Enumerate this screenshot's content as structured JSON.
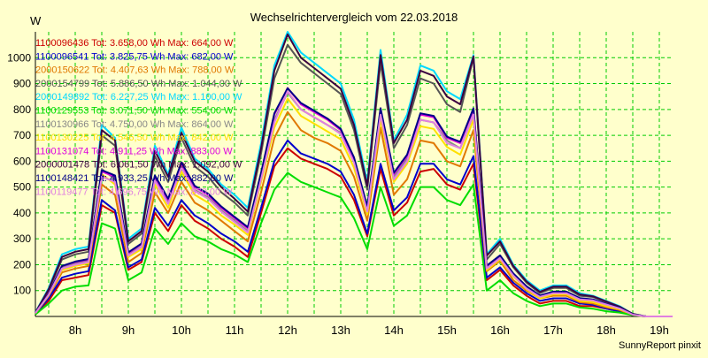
{
  "chart_data": {
    "type": "line",
    "title": "Wechselrichtervergleich vom 22.03.2018",
    "ylabel": "W",
    "xlabel": "",
    "footer": "SunnyReport pinxit",
    "ylim": [
      0,
      1100
    ],
    "yticks": [
      100,
      200,
      300,
      400,
      500,
      600,
      700,
      800,
      900,
      1000
    ],
    "xlim": [
      7.25,
      19.25
    ],
    "xticks": [
      {
        "value": 8,
        "label": "8h"
      },
      {
        "value": 9,
        "label": "9h"
      },
      {
        "value": 10,
        "label": "10h"
      },
      {
        "value": 11,
        "label": "11h"
      },
      {
        "value": 12,
        "label": "12h"
      },
      {
        "value": 13,
        "label": "13h"
      },
      {
        "value": 14,
        "label": "14h"
      },
      {
        "value": 15,
        "label": "15h"
      },
      {
        "value": 16,
        "label": "16h"
      },
      {
        "value": 17,
        "label": "17h"
      },
      {
        "value": 18,
        "label": "18h"
      },
      {
        "value": 19,
        "label": "19h"
      }
    ],
    "grid": true,
    "legend_position": "top-left",
    "x": [
      7.25,
      7.5,
      7.75,
      8.0,
      8.25,
      8.5,
      8.75,
      9.0,
      9.25,
      9.5,
      9.75,
      10.0,
      10.25,
      10.5,
      10.75,
      11.0,
      11.25,
      11.5,
      11.75,
      12.0,
      12.25,
      12.5,
      12.75,
      13.0,
      13.25,
      13.5,
      13.75,
      14.0,
      14.25,
      14.5,
      14.75,
      15.0,
      15.25,
      15.5,
      15.75,
      16.0,
      16.25,
      16.5,
      16.75,
      17.0,
      17.25,
      17.5,
      17.75,
      18.0,
      18.25,
      18.5,
      18.75,
      19.0,
      19.25
    ],
    "series": [
      {
        "name": "1100096436 Tot: 3.658,00 Wh Max: 664,00 W",
        "color": "#cc0000",
        "values": [
          10,
          60,
          140,
          150,
          160,
          430,
          400,
          180,
          210,
          400,
          330,
          430,
          370,
          340,
          300,
          270,
          230,
          400,
          580,
          650,
          610,
          590,
          570,
          540,
          450,
          310,
          570,
          390,
          440,
          560,
          570,
          510,
          490,
          590,
          140,
          180,
          120,
          80,
          50,
          60,
          60,
          40,
          40,
          30,
          20,
          5,
          0,
          0,
          0
        ]
      },
      {
        "name": "1100096541 Tot: 3.825,75 Wh Max: 682,00 W",
        "color": "#0000cc",
        "values": [
          10,
          70,
          150,
          165,
          175,
          450,
          410,
          190,
          220,
          420,
          350,
          450,
          390,
          360,
          320,
          290,
          250,
          420,
          600,
          680,
          630,
          610,
          590,
          560,
          470,
          320,
          590,
          410,
          460,
          590,
          590,
          530,
          510,
          620,
          150,
          190,
          130,
          90,
          60,
          70,
          70,
          50,
          45,
          30,
          20,
          5,
          0,
          0,
          0
        ]
      },
      {
        "name": "2000150622 Tot: 4.407,63 Wh Max: 788,00 W",
        "color": "#e07800",
        "values": [
          12,
          80,
          170,
          185,
          195,
          510,
          470,
          210,
          245,
          480,
          400,
          520,
          440,
          410,
          370,
          330,
          290,
          480,
          690,
          790,
          720,
          690,
          670,
          640,
          540,
          370,
          730,
          470,
          530,
          680,
          670,
          600,
          580,
          720,
          175,
          215,
          140,
          100,
          70,
          80,
          80,
          55,
          50,
          35,
          25,
          5,
          0,
          0,
          0
        ]
      },
      {
        "name": "2000154799 Tot: 5.886,50 Wh Max: 1.044,00 W",
        "color": "#555555",
        "values": [
          15,
          100,
          220,
          240,
          250,
          700,
          660,
          280,
          320,
          620,
          520,
          690,
          580,
          540,
          480,
          440,
          390,
          630,
          920,
          1050,
          980,
          940,
          900,
          860,
          720,
          490,
          980,
          650,
          740,
          920,
          900,
          820,
          790,
          1000,
          220,
          280,
          190,
          130,
          90,
          110,
          110,
          80,
          75,
          55,
          35,
          10,
          0,
          0,
          0
        ]
      },
      {
        "name": "2000149892 Tot: 6.227,25 Wh Max: 1.100,00 W",
        "color": "#00d8ff",
        "values": [
          16,
          110,
          240,
          260,
          270,
          740,
          690,
          300,
          340,
          660,
          550,
          730,
          610,
          570,
          510,
          470,
          420,
          670,
          970,
          1100,
          1020,
          980,
          940,
          900,
          760,
          520,
          1030,
          680,
          780,
          970,
          950,
          870,
          840,
          1010,
          240,
          300,
          200,
          140,
          100,
          120,
          120,
          90,
          80,
          60,
          40,
          10,
          0,
          0,
          0
        ]
      },
      {
        "name": "1100129553 Tot: 3.071,50 Wh Max: 554,00 W",
        "color": "#00dd00",
        "values": [
          8,
          50,
          100,
          115,
          120,
          360,
          340,
          140,
          170,
          340,
          280,
          360,
          310,
          290,
          260,
          240,
          210,
          360,
          490,
          555,
          520,
          500,
          480,
          460,
          380,
          260,
          500,
          350,
          390,
          500,
          500,
          450,
          430,
          510,
          100,
          140,
          90,
          60,
          40,
          50,
          50,
          35,
          30,
          20,
          15,
          5,
          0,
          0,
          0
        ]
      },
      {
        "name": "1100130966 Tot: 4.750,00 Wh Max: 864,00 W",
        "color": "#888888",
        "values": [
          13,
          85,
          190,
          205,
          215,
          570,
          530,
          240,
          270,
          530,
          440,
          580,
          490,
          460,
          410,
          370,
          330,
          540,
          760,
          865,
          800,
          770,
          740,
          710,
          600,
          410,
          790,
          540,
          610,
          760,
          750,
          680,
          650,
          780,
          190,
          230,
          160,
          110,
          75,
          90,
          90,
          65,
          60,
          45,
          30,
          8,
          0,
          0,
          0
        ]
      },
      {
        "name": "1100130225 Tot: 4.546,50 Wh Max: 842,00 W",
        "color": "#ffe000",
        "values": [
          12,
          82,
          180,
          195,
          205,
          550,
          510,
          230,
          260,
          510,
          420,
          560,
          470,
          440,
          390,
          355,
          315,
          520,
          730,
          842,
          775,
          745,
          715,
          685,
          575,
          395,
          760,
          520,
          590,
          735,
          725,
          655,
          625,
          760,
          180,
          220,
          155,
          105,
          70,
          85,
          85,
          60,
          55,
          40,
          28,
          7,
          0,
          0,
          0
        ]
      },
      {
        "name": "1100131074 Tot: 4.911,25 Wh Max: 883,00 W",
        "color": "#dd00dd",
        "values": [
          13,
          88,
          195,
          210,
          220,
          560,
          540,
          245,
          280,
          540,
          450,
          590,
          500,
          470,
          420,
          380,
          340,
          550,
          780,
          883,
          820,
          790,
          760,
          720,
          610,
          420,
          800,
          550,
          620,
          780,
          770,
          690,
          670,
          800,
          195,
          235,
          165,
          115,
          80,
          95,
          95,
          70,
          65,
          48,
          32,
          8,
          0,
          0,
          0
        ]
      },
      {
        "name": "2000001478 Tot: 6.061,50 Wh Max: 1.092,00 W",
        "color": "#3a0040",
        "values": [
          15,
          105,
          230,
          250,
          260,
          720,
          680,
          290,
          330,
          640,
          540,
          710,
          600,
          560,
          500,
          455,
          405,
          650,
          950,
          1090,
          1000,
          960,
          920,
          880,
          740,
          505,
          1010,
          670,
          760,
          950,
          930,
          850,
          820,
          1005,
          235,
          290,
          195,
          135,
          95,
          115,
          115,
          85,
          78,
          58,
          38,
          10,
          0,
          0,
          0
        ]
      },
      {
        "name": "1100148421 Tot: 4.933,25 Wh Max: 882,00 W",
        "color": "#000088",
        "values": [
          13,
          87,
          195,
          212,
          222,
          565,
          545,
          248,
          282,
          545,
          455,
          595,
          505,
          475,
          425,
          385,
          345,
          555,
          785,
          882,
          825,
          795,
          765,
          725,
          615,
          425,
          805,
          555,
          625,
          785,
          775,
          695,
          675,
          805,
          196,
          236,
          166,
          116,
          81,
          96,
          96,
          71,
          66,
          49,
          33,
          8,
          0,
          0,
          0
        ]
      },
      {
        "name": "1100119477 Tot: 4.696,75 Wh Max: 870,00 W",
        "color": "#e080e0",
        "values": [
          13,
          84,
          185,
          200,
          210,
          540,
          520,
          235,
          268,
          525,
          435,
          575,
          485,
          455,
          405,
          365,
          325,
          530,
          750,
          870,
          800,
          770,
          740,
          705,
          595,
          405,
          780,
          530,
          600,
          760,
          750,
          670,
          650,
          780,
          185,
          225,
          158,
          108,
          76,
          90,
          90,
          66,
          62,
          46,
          31,
          7,
          0,
          0,
          0
        ]
      }
    ]
  }
}
